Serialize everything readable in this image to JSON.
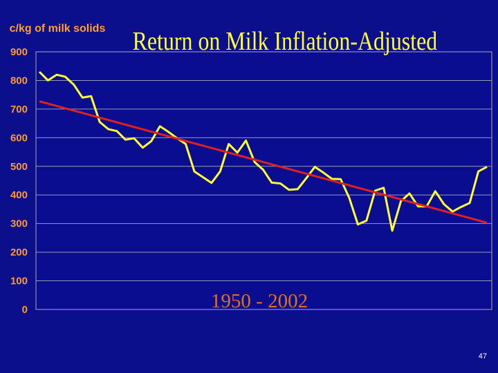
{
  "chart_data": {
    "type": "line",
    "title": "Return on Milk Inflation-Adjusted",
    "ylabel": "c/kg of milk solids",
    "annotation": "1950  -  2002",
    "ylim": [
      0,
      900
    ],
    "yticks": [
      0,
      100,
      200,
      300,
      400,
      500,
      600,
      700,
      800,
      900
    ],
    "grid": true,
    "x_range": [
      1950,
      2002
    ],
    "series": [
      {
        "color": "#ffff33",
        "x": [
          1950,
          1951,
          1952,
          1953,
          1954,
          1955,
          1956,
          1957,
          1958,
          1959,
          1960,
          1961,
          1962,
          1963,
          1964,
          1965,
          1966,
          1967,
          1968,
          1969,
          1970,
          1971,
          1972,
          1973,
          1974,
          1975,
          1976,
          1977,
          1978,
          1979,
          1980,
          1981,
          1982,
          1983,
          1984,
          1985,
          1986,
          1987,
          1988,
          1989,
          1990,
          1991,
          1992,
          1993,
          1994,
          1995,
          1996,
          1997,
          1998,
          1999,
          2000,
          2001,
          2002
        ],
        "values": [
          830,
          800,
          820,
          813,
          785,
          740,
          745,
          655,
          630,
          623,
          593,
          598,
          565,
          588,
          640,
          620,
          598,
          578,
          482,
          462,
          442,
          482,
          578,
          548,
          590,
          515,
          488,
          443,
          440,
          418,
          420,
          458,
          498,
          478,
          456,
          455,
          390,
          297,
          310,
          415,
          425,
          275,
          378,
          405,
          360,
          360,
          413,
          368,
          342,
          358,
          372,
          482,
          498
        ]
      },
      {
        "color": "#e02020",
        "x": [
          1950,
          2002
        ],
        "values": [
          727,
          303
        ]
      }
    ]
  },
  "slide_number": "47"
}
